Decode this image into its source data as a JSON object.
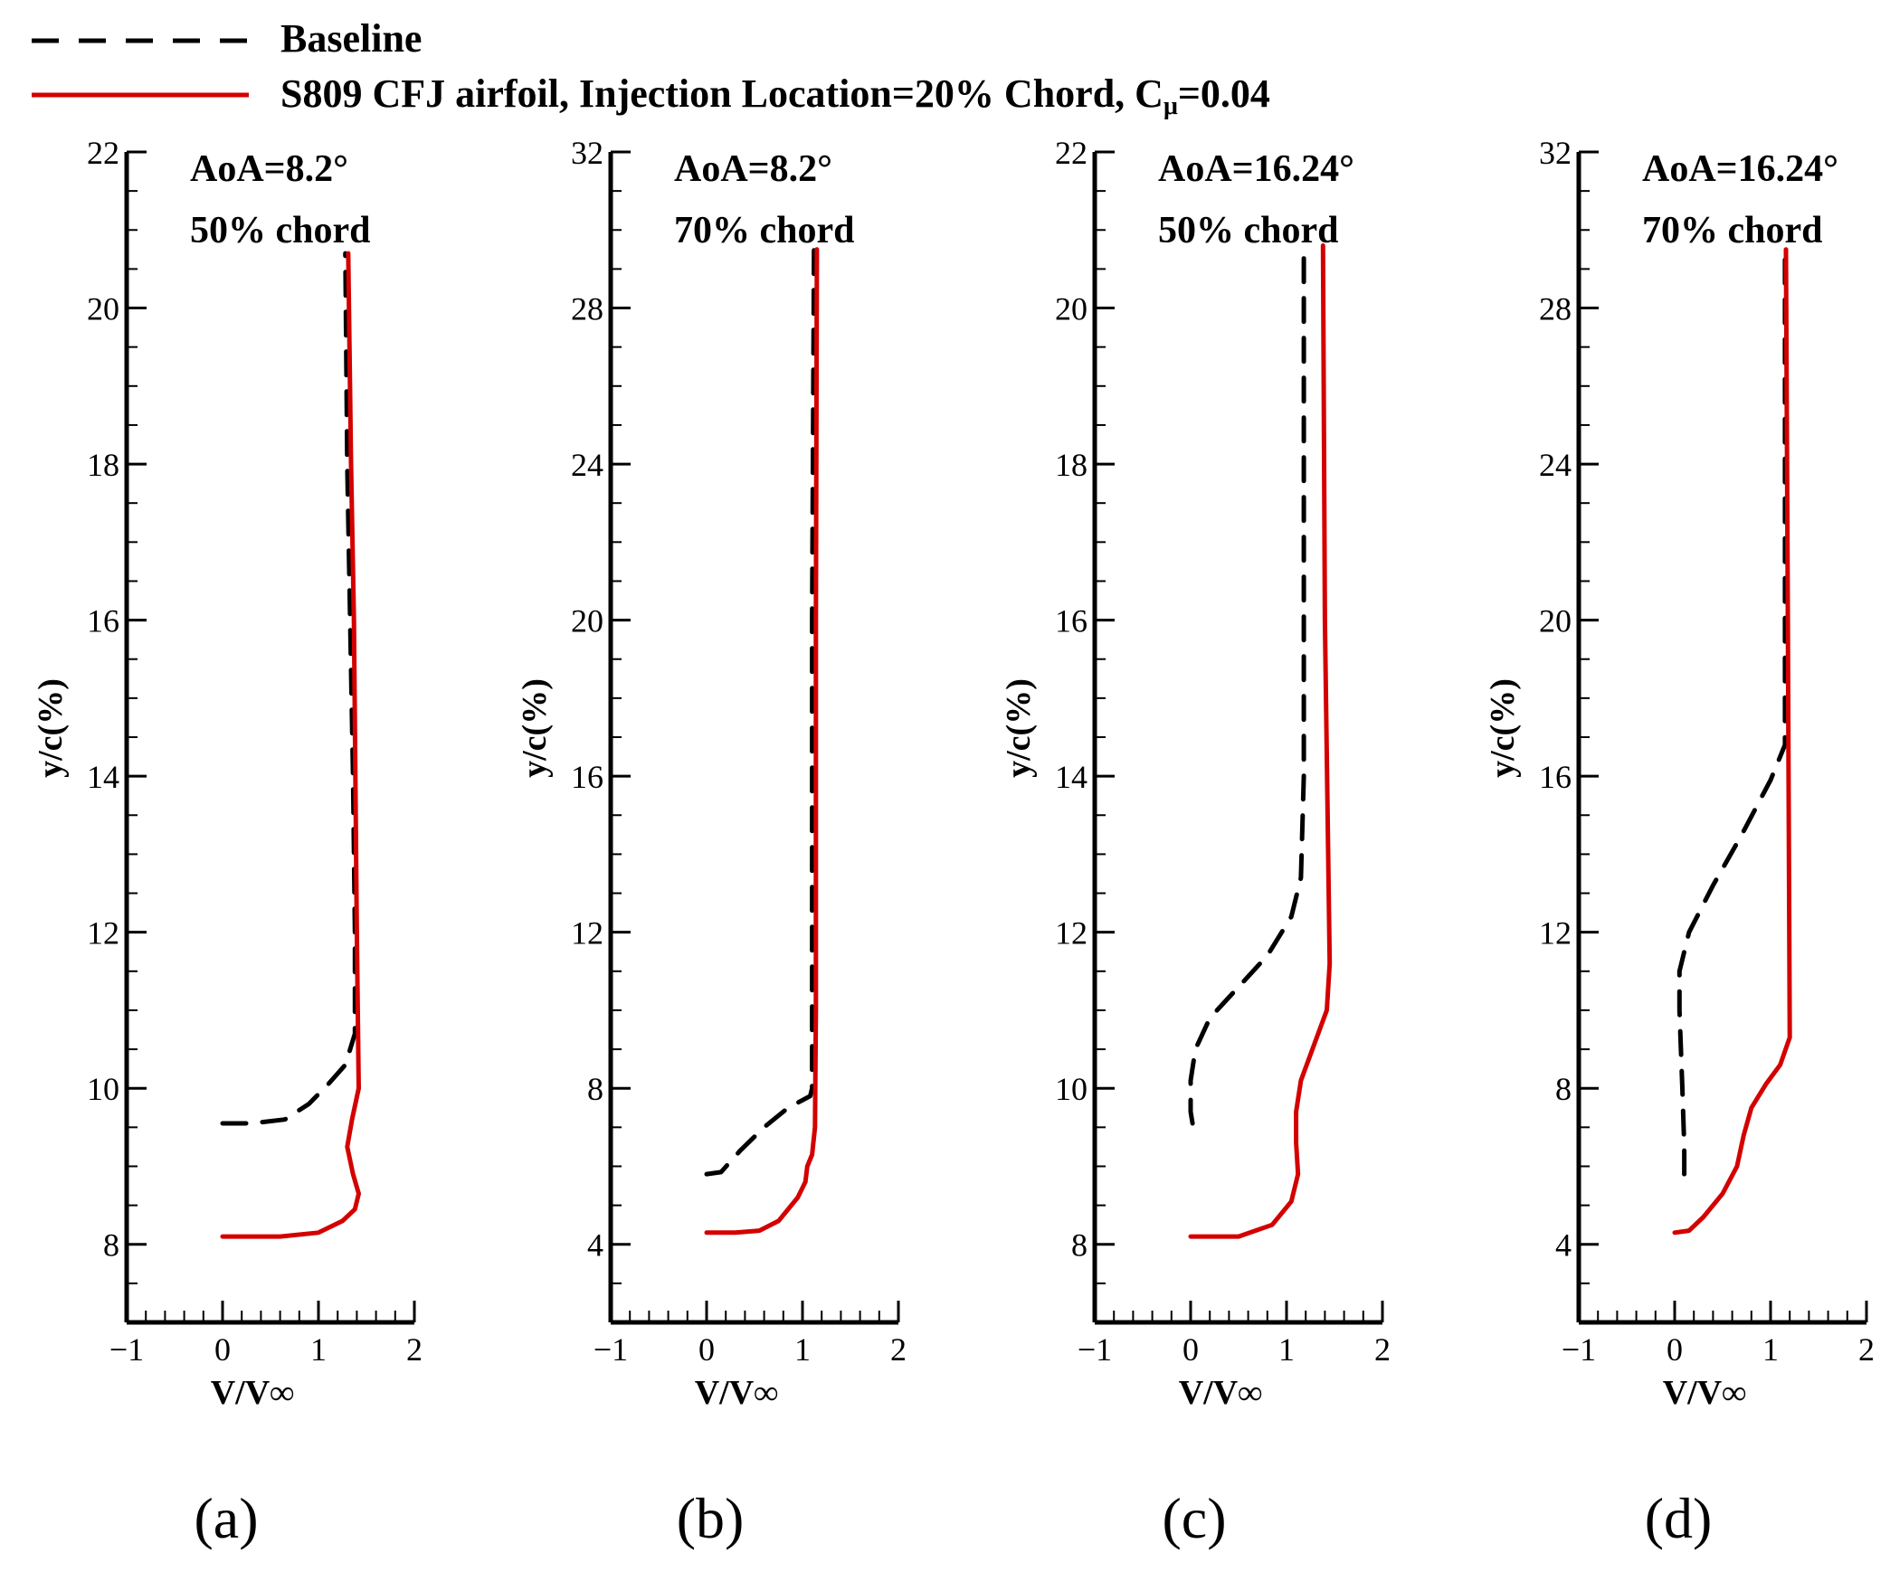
{
  "legend": {
    "items": [
      {
        "label": "Baseline",
        "color": "#000000",
        "dash": true
      },
      {
        "label": "S809 CFJ airfoil, Injection Location=20% Chord, C",
        "sub": "μ",
        "suffix": "=0.04",
        "color": "#d40000",
        "dash": false
      }
    ]
  },
  "colors": {
    "baseline": "#000000",
    "cfj": "#d40000",
    "axis": "#000000"
  },
  "chart_data": [
    {
      "type": "line",
      "panel": "(a)",
      "annotations": [
        "AoA=8.2°",
        "50% chord"
      ],
      "xlabel": "V/V∞",
      "ylabel": "y/c(%)",
      "xlim": [
        -1,
        2
      ],
      "ylim": [
        7,
        22
      ],
      "xticks": [
        -1,
        0,
        1,
        2
      ],
      "xtick_labels": [
        "−1",
        "0",
        "1",
        "2"
      ],
      "yticks": [
        8,
        10,
        12,
        14,
        16,
        18,
        20,
        22
      ],
      "ytick_labels": [
        "8",
        "10",
        "12",
        "14",
        "16",
        "18",
        "20",
        "22"
      ],
      "series": [
        {
          "name": "Baseline",
          "x": [
            0.0,
            0.3,
            0.65,
            0.9,
            1.1,
            1.28,
            1.38,
            1.38,
            1.36,
            1.33,
            1.3,
            1.28
          ],
          "y": [
            9.55,
            9.55,
            9.6,
            9.8,
            10.05,
            10.3,
            10.7,
            12.0,
            14.0,
            16.0,
            18.0,
            20.7
          ]
        },
        {
          "name": "S809 CFJ airfoil",
          "x": [
            0.0,
            0.6,
            1.0,
            1.25,
            1.38,
            1.42,
            1.36,
            1.3,
            1.35,
            1.42,
            1.4,
            1.37,
            1.34,
            1.31
          ],
          "y": [
            8.1,
            8.1,
            8.15,
            8.3,
            8.45,
            8.65,
            8.9,
            9.25,
            9.6,
            10.0,
            12.0,
            16.0,
            18.0,
            20.7
          ]
        }
      ]
    },
    {
      "type": "line",
      "panel": "(b)",
      "annotations": [
        "AoA=8.2°",
        "70% chord"
      ],
      "xlabel": "V/V∞",
      "ylabel": "y/c(%)",
      "xlim": [
        -1,
        2
      ],
      "ylim": [
        2,
        32
      ],
      "xticks": [
        -1,
        0,
        1,
        2
      ],
      "xtick_labels": [
        "−1",
        "0",
        "1",
        "2"
      ],
      "yticks": [
        4,
        8,
        12,
        16,
        20,
        24,
        28,
        32
      ],
      "ytick_labels": [
        "4",
        "8",
        "12",
        "16",
        "20",
        "24",
        "28",
        "32"
      ],
      "series": [
        {
          "name": "Baseline",
          "x": [
            0.0,
            0.15,
            0.35,
            0.6,
            0.85,
            1.08,
            1.1,
            1.1,
            1.12
          ],
          "y": [
            5.8,
            5.85,
            6.4,
            7.0,
            7.5,
            7.8,
            8.0,
            20.0,
            29.5
          ]
        },
        {
          "name": "S809 CFJ airfoil",
          "x": [
            0.0,
            0.3,
            0.55,
            0.75,
            0.95,
            1.03,
            1.05,
            1.1,
            1.13,
            1.14,
            1.14,
            1.15
          ],
          "y": [
            4.3,
            4.3,
            4.35,
            4.6,
            5.2,
            5.6,
            6.0,
            6.3,
            7.0,
            10.0,
            20.0,
            29.5
          ]
        }
      ]
    },
    {
      "type": "line",
      "panel": "(c)",
      "annotations": [
        "AoA=16.24°",
        "50% chord"
      ],
      "xlabel": "V/V∞",
      "ylabel": "y/c(%)",
      "xlim": [
        -1,
        2
      ],
      "ylim": [
        7,
        22
      ],
      "xticks": [
        -1,
        0,
        1,
        2
      ],
      "xtick_labels": [
        "−1",
        "0",
        "1",
        "2"
      ],
      "yticks": [
        8,
        10,
        12,
        14,
        16,
        18,
        20,
        22
      ],
      "ytick_labels": [
        "8",
        "10",
        "12",
        "14",
        "16",
        "18",
        "20",
        "22"
      ],
      "series": [
        {
          "name": "Baseline",
          "x": [
            0.02,
            0.0,
            0.0,
            0.05,
            0.2,
            0.5,
            0.8,
            1.05,
            1.15,
            1.18,
            1.18,
            1.18
          ],
          "y": [
            9.55,
            9.7,
            10.1,
            10.5,
            10.9,
            11.3,
            11.7,
            12.2,
            12.7,
            14.0,
            18.0,
            20.8
          ]
        },
        {
          "name": "S809 CFJ airfoil",
          "x": [
            0.0,
            0.5,
            0.85,
            1.05,
            1.12,
            1.1,
            1.1,
            1.15,
            1.3,
            1.42,
            1.45,
            1.4,
            1.38
          ],
          "y": [
            8.1,
            8.1,
            8.25,
            8.55,
            8.9,
            9.3,
            9.7,
            10.1,
            10.6,
            11.0,
            11.6,
            16.0,
            20.8
          ]
        }
      ]
    },
    {
      "type": "line",
      "panel": "(d)",
      "annotations": [
        "AoA=16.24°",
        "70% chord"
      ],
      "xlabel": "V/V∞",
      "ylabel": "y/c(%)",
      "xlim": [
        -1,
        2
      ],
      "ylim": [
        2,
        32
      ],
      "xticks": [
        -1,
        0,
        1,
        2
      ],
      "xtick_labels": [
        "−1",
        "0",
        "1",
        "2"
      ],
      "yticks": [
        4,
        8,
        12,
        16,
        20,
        24,
        28,
        32
      ],
      "ytick_labels": [
        "4",
        "8",
        "12",
        "16",
        "20",
        "24",
        "28",
        "32"
      ],
      "series": [
        {
          "name": "Baseline",
          "x": [
            0.1,
            0.1,
            0.08,
            0.05,
            0.05,
            0.15,
            0.4,
            0.7,
            1.0,
            1.15,
            1.15
          ],
          "y": [
            5.8,
            6.5,
            8.0,
            10.0,
            11.0,
            12.0,
            13.2,
            14.5,
            15.9,
            16.8,
            29.5
          ]
        },
        {
          "name": "S809 CFJ airfoil",
          "x": [
            0.0,
            0.15,
            0.3,
            0.5,
            0.65,
            0.72,
            0.8,
            0.95,
            1.1,
            1.2,
            1.18,
            1.16
          ],
          "y": [
            4.3,
            4.35,
            4.7,
            5.3,
            6.0,
            6.8,
            7.5,
            8.1,
            8.6,
            9.3,
            20.0,
            29.5
          ]
        }
      ]
    }
  ],
  "panel_labels": [
    "(a)",
    "(b)",
    "(c)",
    "(d)"
  ]
}
